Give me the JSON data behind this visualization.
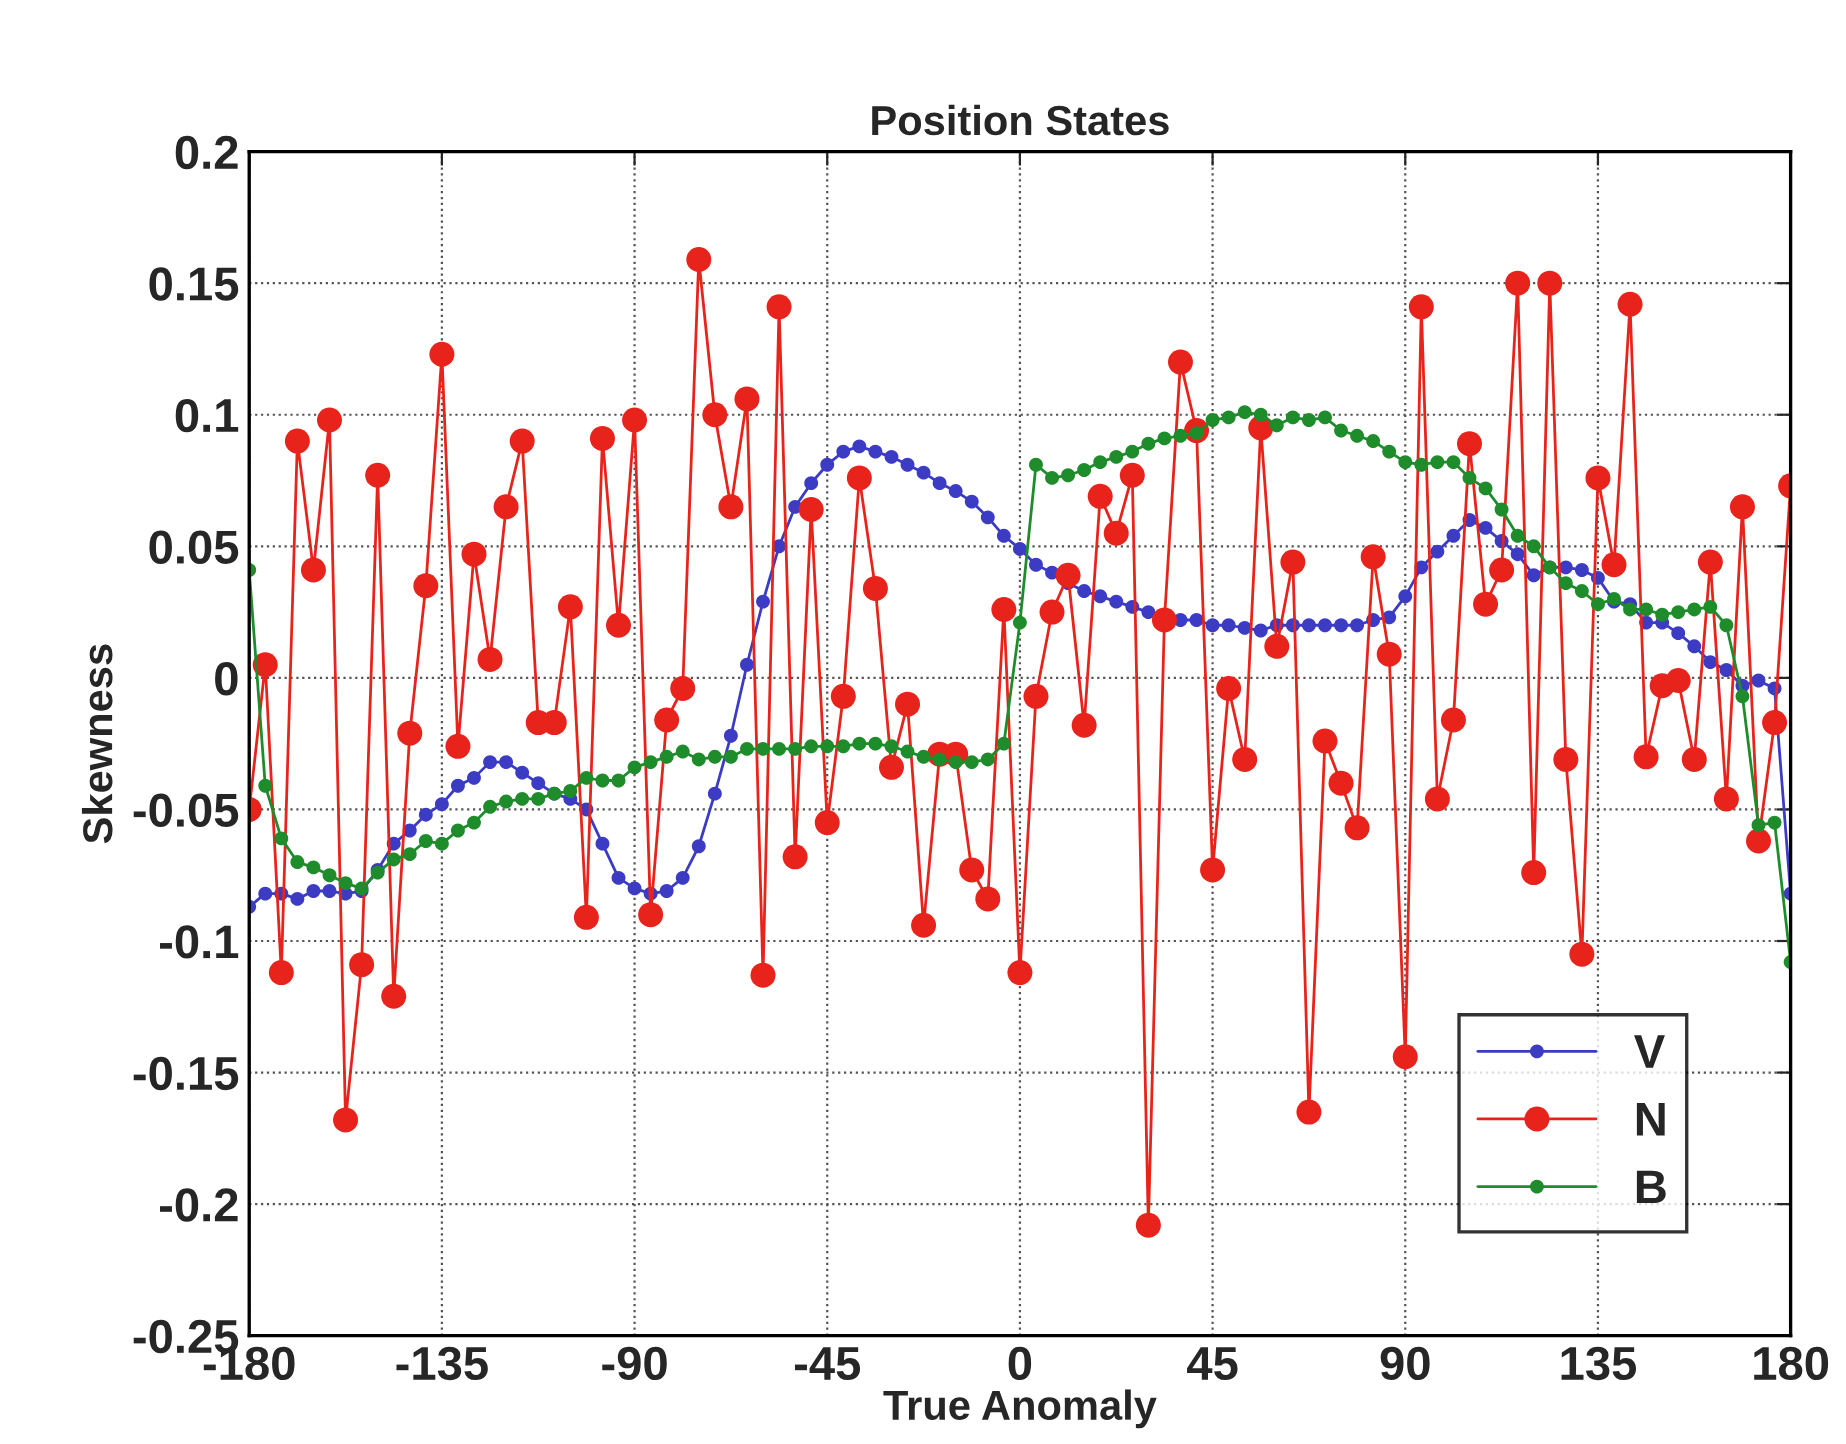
{
  "chart_data": {
    "type": "line",
    "title": "Position States",
    "xlabel": "True Anomaly",
    "ylabel": "Skewness",
    "x": [
      -180,
      -176.25,
      -172.5,
      -168.75,
      -165,
      -161.25,
      -157.5,
      -153.75,
      -150,
      -146.25,
      -142.5,
      -138.75,
      -135,
      -131.25,
      -127.5,
      -123.75,
      -120,
      -116.25,
      -112.5,
      -108.75,
      -105,
      -101.25,
      -97.5,
      -93.75,
      -90,
      -86.25,
      -82.5,
      -78.75,
      -75,
      -71.25,
      -67.5,
      -63.75,
      -60,
      -56.25,
      -52.5,
      -48.75,
      -45,
      -41.25,
      -37.5,
      -33.75,
      -30,
      -26.25,
      -22.5,
      -18.75,
      -15,
      -11.25,
      -7.5,
      -3.75,
      0,
      3.75,
      7.5,
      11.25,
      15,
      18.75,
      22.5,
      26.25,
      30,
      33.75,
      37.5,
      41.25,
      45,
      48.75,
      52.5,
      56.25,
      60,
      63.75,
      67.5,
      71.25,
      75,
      78.75,
      82.5,
      86.25,
      90,
      93.75,
      97.5,
      101.25,
      105,
      108.75,
      112.5,
      116.25,
      120,
      123.75,
      127.5,
      131.25,
      135,
      138.75,
      142.5,
      146.25,
      150,
      153.75,
      157.5,
      161.25,
      165,
      168.75,
      172.5,
      176.25,
      180
    ],
    "series": [
      {
        "name": "V",
        "color": "#3b3bc4",
        "marker": "circle",
        "values": [
          -0.087,
          -0.082,
          -0.082,
          -0.084,
          -0.081,
          -0.081,
          -0.082,
          -0.081,
          -0.073,
          -0.063,
          -0.058,
          -0.052,
          -0.048,
          -0.041,
          -0.038,
          -0.032,
          -0.032,
          -0.036,
          -0.04,
          -0.044,
          -0.046,
          -0.05,
          -0.063,
          -0.076,
          -0.08,
          -0.082,
          -0.081,
          -0.076,
          -0.064,
          -0.044,
          -0.022,
          0.005,
          0.029,
          0.05,
          0.065,
          0.074,
          0.081,
          0.086,
          0.088,
          0.086,
          0.084,
          0.081,
          0.078,
          0.074,
          0.071,
          0.067,
          0.061,
          0.054,
          0.049,
          0.043,
          0.04,
          0.036,
          0.033,
          0.031,
          0.029,
          0.027,
          0.025,
          0.023,
          0.022,
          0.022,
          0.02,
          0.02,
          0.019,
          0.018,
          0.02,
          0.02,
          0.02,
          0.02,
          0.02,
          0.02,
          0.022,
          0.023,
          0.031,
          0.042,
          0.048,
          0.054,
          0.06,
          0.057,
          0.052,
          0.047,
          0.039,
          0.042,
          0.042,
          0.041,
          0.038,
          0.029,
          0.028,
          0.021,
          0.021,
          0.017,
          0.012,
          0.006,
          0.003,
          -0.003,
          -0.001,
          -0.004,
          -0.082
        ]
      },
      {
        "name": "N",
        "color": "#e8231c",
        "marker": "circle",
        "values": [
          -0.05,
          0.005,
          -0.112,
          0.09,
          0.041,
          0.098,
          -0.168,
          -0.109,
          0.077,
          -0.121,
          -0.021,
          0.035,
          0.123,
          -0.026,
          0.047,
          0.007,
          0.065,
          0.09,
          -0.017,
          -0.017,
          0.027,
          -0.091,
          0.091,
          0.02,
          0.098,
          -0.09,
          -0.016,
          -0.004,
          0.159,
          0.1,
          0.065,
          0.106,
          -0.113,
          0.141,
          -0.068,
          0.064,
          -0.055,
          -0.007,
          0.076,
          0.034,
          -0.034,
          -0.01,
          -0.094,
          -0.029,
          -0.029,
          -0.073,
          -0.084,
          0.026,
          -0.112,
          -0.007,
          0.025,
          0.039,
          -0.018,
          0.069,
          0.055,
          0.077,
          -0.208,
          0.022,
          0.12,
          0.094,
          -0.073,
          -0.004,
          -0.031,
          0.095,
          0.012,
          0.044,
          -0.165,
          -0.024,
          -0.04,
          -0.057,
          0.046,
          0.009,
          -0.144,
          0.141,
          -0.046,
          -0.016,
          0.089,
          0.028,
          0.041,
          0.15,
          -0.074,
          0.15,
          -0.031,
          -0.105,
          0.076,
          0.043,
          0.142,
          -0.03,
          -0.003,
          -0.001,
          -0.031,
          0.044,
          -0.046,
          0.065,
          -0.062,
          -0.017,
          0.073
        ]
      },
      {
        "name": "B",
        "color": "#1f8c2b",
        "marker": "circle",
        "values": [
          0.041,
          -0.041,
          -0.061,
          -0.07,
          -0.072,
          -0.075,
          -0.078,
          -0.08,
          -0.074,
          -0.069,
          -0.067,
          -0.062,
          -0.063,
          -0.058,
          -0.055,
          -0.049,
          -0.047,
          -0.046,
          -0.046,
          -0.044,
          -0.043,
          -0.038,
          -0.039,
          -0.039,
          -0.034,
          -0.032,
          -0.03,
          -0.028,
          -0.031,
          -0.03,
          -0.03,
          -0.027,
          -0.027,
          -0.027,
          -0.027,
          -0.026,
          -0.026,
          -0.026,
          -0.025,
          -0.025,
          -0.026,
          -0.028,
          -0.03,
          -0.031,
          -0.032,
          -0.032,
          -0.031,
          -0.025,
          0.021,
          0.081,
          0.076,
          0.077,
          0.079,
          0.082,
          0.084,
          0.086,
          0.089,
          0.091,
          0.092,
          0.093,
          0.098,
          0.099,
          0.101,
          0.1,
          0.096,
          0.099,
          0.098,
          0.099,
          0.094,
          0.092,
          0.09,
          0.086,
          0.082,
          0.081,
          0.082,
          0.082,
          0.076,
          0.072,
          0.064,
          0.054,
          0.05,
          0.042,
          0.036,
          0.033,
          0.028,
          0.03,
          0.026,
          0.026,
          0.024,
          0.025,
          0.026,
          0.027,
          0.02,
          -0.007,
          -0.056,
          -0.055,
          -0.108
        ]
      }
    ],
    "xlim": [
      -180,
      180
    ],
    "xticks": [
      -180,
      -135,
      -90,
      -45,
      0,
      45,
      90,
      135,
      180
    ],
    "ylim": [
      -0.25,
      0.2
    ],
    "yticks": [
      -0.25,
      -0.2,
      -0.15,
      -0.1,
      -0.05,
      0,
      0.05,
      0.1,
      0.15,
      0.2
    ],
    "grid": true,
    "legend": "lower right",
    "line_style": "solid"
  }
}
